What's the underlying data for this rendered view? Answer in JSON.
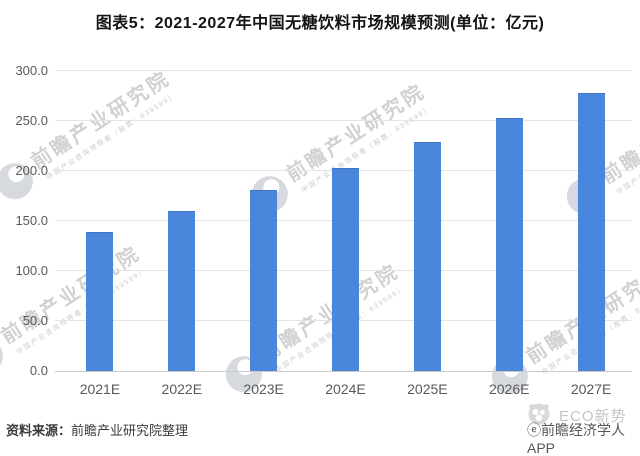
{
  "chart_data": {
    "type": "bar",
    "title": "图表5：2021-2027年中国无糖饮料市场规模预测(单位：亿元)",
    "unit": "亿元",
    "categories": [
      "2021E",
      "2022E",
      "2023E",
      "2024E",
      "2025E",
      "2026E",
      "2027E"
    ],
    "values": [
      138,
      159,
      180,
      202,
      228,
      252,
      277
    ],
    "xlabel": "",
    "ylabel": "",
    "ylim": [
      0,
      300
    ],
    "yticks": [
      0,
      50,
      100,
      150,
      200,
      250,
      300
    ],
    "ytick_labels": [
      "0.0",
      "50.0",
      "100.0",
      "150.0",
      "200.0",
      "250.0",
      "300.0"
    ],
    "grid": true,
    "legend": null,
    "bar_color": "#4A86DB"
  },
  "colors": {
    "bar": "#4A86DB",
    "gridline": "#e4e4e4",
    "axis_line": "#c9c9c9",
    "tick_text": "#595959",
    "title_text": "#141414"
  },
  "watermark": {
    "brand": "前瞻产业研究院",
    "tagline": "中国产业咨询领导者（股票：839599）"
  },
  "footer": {
    "source_label": "资料来源：",
    "source_org": "前瞻产业研究院整理",
    "eco_brand": "ECO新势",
    "app_credit_icon": "ⓔ",
    "app_credit": "前瞻经济学人APP"
  }
}
